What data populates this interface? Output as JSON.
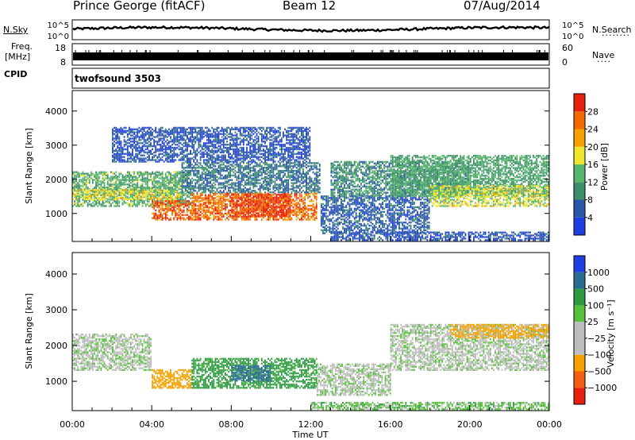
{
  "header": {
    "station": "Prince George (fitACF)",
    "beam": "Beam 12",
    "date": "07/Aug/2014"
  },
  "noise_panel": {
    "left_label": "N.Sky",
    "right_label": "N.Search",
    "tick_top": "10^5",
    "tick_bottom": "10^0"
  },
  "freq_panel": {
    "left_label_1": "Freq.",
    "left_label_2": "[MHz]",
    "left_ticks": [
      "18",
      "8"
    ],
    "right_ticks": [
      "60",
      "0"
    ],
    "right_label": "Nave"
  },
  "cpid_panel": {
    "label": "CPID",
    "program": "twofsound 3503"
  },
  "colors": {
    "power_scale": [
      "#1f3fe0",
      "#2a55a8",
      "#3d8f6a",
      "#58b66c",
      "#f0e630",
      "#f5a100",
      "#f26a00",
      "#e81e0e"
    ],
    "velocity_scale": [
      "#e81e0e",
      "#f45e12",
      "#f5a100",
      "#bdbdbd",
      "#bdbdbd",
      "#58c03c",
      "#2f9a41",
      "#2a6b90",
      "#1f3fe0"
    ]
  },
  "chart_data": [
    {
      "type": "heatmap",
      "panel": "power",
      "ylabel": "Slant Range [km]",
      "xlabel": "",
      "x_ticks": [
        "00:00",
        "04:00",
        "08:00",
        "12:00",
        "16:00",
        "20:00",
        "00:00"
      ],
      "xlim_hours": [
        0,
        24
      ],
      "y_ticks": [
        "1000",
        "2000",
        "3000",
        "4000"
      ],
      "y_tick_values": [
        1000,
        2000,
        3000,
        4000
      ],
      "ylim": [
        180,
        4600
      ],
      "colorbar": {
        "label": "Power [dB]",
        "ticks": [
          "4",
          "8",
          "12",
          "16",
          "20",
          "24",
          "28"
        ],
        "range": [
          0,
          32
        ]
      },
      "bands": [
        {
          "t0": 0.0,
          "t1": 6.0,
          "r0": 1200,
          "r1": 2200,
          "value": 13
        },
        {
          "t0": 0.0,
          "t1": 5.5,
          "r0": 1400,
          "r1": 1700,
          "value": 18
        },
        {
          "t0": 4.0,
          "t1": 6.2,
          "r0": 800,
          "r1": 1350,
          "value": 27
        },
        {
          "t0": 6.0,
          "t1": 12.3,
          "r0": 800,
          "r1": 1600,
          "value": 26
        },
        {
          "t0": 8.0,
          "t1": 11.0,
          "r0": 900,
          "r1": 1550,
          "value": 29
        },
        {
          "t0": 5.5,
          "t1": 12.5,
          "r0": 1600,
          "r1": 2500,
          "value": 8
        },
        {
          "t0": 2.0,
          "t1": 12.0,
          "r0": 2500,
          "r1": 3500,
          "value": 5
        },
        {
          "t0": 12.5,
          "t1": 18.0,
          "r0": 400,
          "r1": 1500,
          "value": 6
        },
        {
          "t0": 13.0,
          "t1": 20.0,
          "r0": 1500,
          "r1": 2500,
          "value": 10
        },
        {
          "t0": 16.0,
          "t1": 24.0,
          "r0": 1500,
          "r1": 2700,
          "value": 12
        },
        {
          "t0": 18.0,
          "t1": 24.0,
          "r0": 1200,
          "r1": 1800,
          "value": 17
        },
        {
          "t0": 13.0,
          "t1": 24.0,
          "r0": 200,
          "r1": 450,
          "value": 5
        }
      ]
    },
    {
      "type": "heatmap",
      "panel": "velocity",
      "ylabel": "Slant Range [km]",
      "xlabel": "Time UT",
      "x_ticks": [
        "00:00",
        "04:00",
        "08:00",
        "12:00",
        "16:00",
        "20:00",
        "00:00"
      ],
      "xlim_hours": [
        0,
        24
      ],
      "y_ticks": [
        "1000",
        "2000",
        "3000",
        "4000"
      ],
      "y_tick_values": [
        1000,
        2000,
        3000,
        4000
      ],
      "ylim": [
        180,
        4600
      ],
      "colorbar": {
        "label": "Velocity [m s⁻¹]",
        "ticks": [
          "1000",
          "500",
          "100",
          "25",
          "−25",
          "−100",
          "−500",
          "−1000"
        ]
      },
      "bands": [
        {
          "t0": 0.0,
          "t1": 4.0,
          "r0": 1300,
          "r1": 2300,
          "value": 0
        },
        {
          "t0": 4.0,
          "t1": 6.0,
          "r0": 800,
          "r1": 1300,
          "value": -300
        },
        {
          "t0": 6.0,
          "t1": 12.3,
          "r0": 800,
          "r1": 1650,
          "value": 150
        },
        {
          "t0": 8.0,
          "t1": 10.0,
          "r0": 1000,
          "r1": 1450,
          "value": 700
        },
        {
          "t0": 12.3,
          "t1": 16.0,
          "r0": 600,
          "r1": 1500,
          "value": 0
        },
        {
          "t0": 16.0,
          "t1": 24.0,
          "r0": 1300,
          "r1": 2600,
          "value": 0
        },
        {
          "t0": 19.0,
          "t1": 24.0,
          "r0": 2200,
          "r1": 2600,
          "value": -150
        },
        {
          "t0": 12.0,
          "t1": 24.0,
          "r0": 200,
          "r1": 400,
          "value": 60
        }
      ]
    }
  ]
}
